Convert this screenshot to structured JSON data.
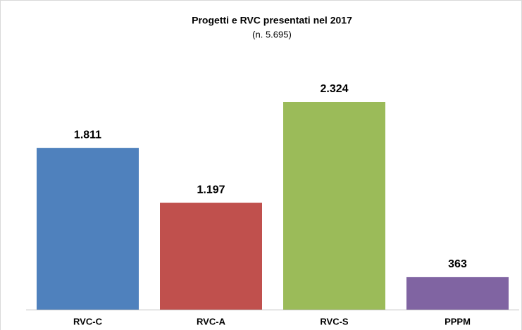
{
  "chart_data": {
    "type": "bar",
    "title": "Progetti e RVC presentati nel 2017",
    "subtitle": "(n. 5.695)",
    "categories": [
      "RVC-C",
      "RVC-A",
      "RVC-S",
      "PPPM"
    ],
    "values": [
      1811,
      1197,
      2324,
      363
    ],
    "value_labels": [
      "1.811",
      "1.197",
      "2.324",
      "363"
    ],
    "colors": [
      "#4f81bd",
      "#c0504d",
      "#9bbb59",
      "#8064a2"
    ]
  }
}
